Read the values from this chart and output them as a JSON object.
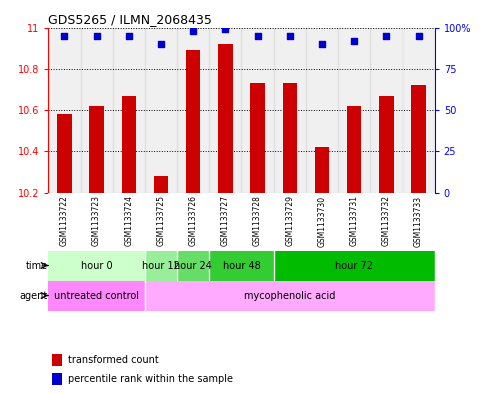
{
  "title": "GDS5265 / ILMN_2068435",
  "samples": [
    "GSM1133722",
    "GSM1133723",
    "GSM1133724",
    "GSM1133725",
    "GSM1133726",
    "GSM1133727",
    "GSM1133728",
    "GSM1133729",
    "GSM1133730",
    "GSM1133731",
    "GSM1133732",
    "GSM1133733"
  ],
  "bar_values": [
    10.58,
    10.62,
    10.67,
    10.28,
    10.89,
    10.92,
    10.73,
    10.73,
    10.42,
    10.62,
    10.67,
    10.72
  ],
  "percentile_values": [
    95,
    95,
    95,
    90,
    98,
    99,
    95,
    95,
    90,
    92,
    95,
    95
  ],
  "ylim": [
    10.2,
    11.0
  ],
  "yticks_left": [
    10.2,
    10.4,
    10.6,
    10.8,
    11
  ],
  "yticks_right": [
    0,
    25,
    50,
    75,
    100
  ],
  "ytick_labels_right": [
    "0",
    "25",
    "50",
    "75",
    "100%"
  ],
  "bar_color": "#cc0000",
  "dot_color": "#0000cc",
  "bg_color": "#c8c8c8",
  "plot_bg": "#ffffff",
  "time_groups": [
    {
      "label": "hour 0",
      "start": 0,
      "end": 3,
      "color": "#ccffcc"
    },
    {
      "label": "hour 12",
      "start": 3,
      "end": 4,
      "color": "#99ff99"
    },
    {
      "label": "hour 24",
      "start": 4,
      "end": 5,
      "color": "#66ff66"
    },
    {
      "label": "hour 48",
      "start": 5,
      "end": 7,
      "color": "#33dd33"
    },
    {
      "label": "hour 72",
      "start": 7,
      "end": 12,
      "color": "#00cc00"
    }
  ],
  "agent_groups": [
    {
      "label": "untreated control",
      "start": 0,
      "end": 3,
      "color": "#ff88ff"
    },
    {
      "label": "mycophenolic acid",
      "start": 3,
      "end": 12,
      "color": "#ffaaff"
    }
  ],
  "legend_red": "transformed count",
  "legend_blue": "percentile rank within the sample",
  "time_label": "time",
  "agent_label": "agent"
}
